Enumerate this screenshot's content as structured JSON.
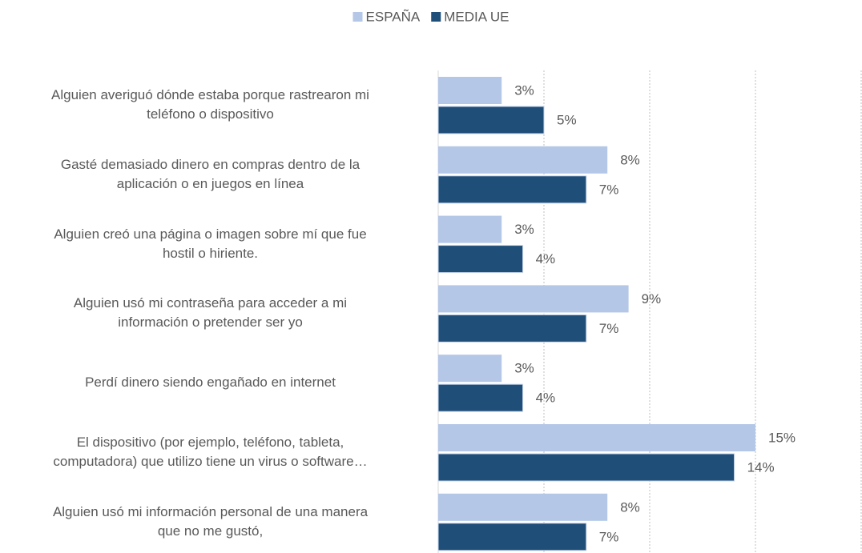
{
  "chart_data": {
    "type": "barh",
    "categories": [
      "Alguien averiguó dónde estaba porque rastrearon mi\nteléfono o dispositivo",
      "Gasté demasiado dinero en compras dentro de la\naplicación o en juegos en línea",
      "Alguien creó una página o imagen sobre mí que fue\nhostil o hiriente.",
      "Alguien usó mi contraseña para acceder a mi\ninformación o pretender ser yo",
      "Perdí dinero siendo engañado en internet",
      "El dispositivo (por ejemplo, teléfono, tableta,\ncomputadora) que utilizo tiene un virus o software…",
      "Alguien usó mi información personal de una manera\nque no me gustó,"
    ],
    "series": [
      {
        "name": "ESPAÑA",
        "color": "#b4c7e7",
        "values": [
          3,
          8,
          3,
          9,
          3,
          15,
          8
        ],
        "value_labels": [
          "3%",
          "8%",
          "3%",
          "9%",
          "3%",
          "15%",
          "8%"
        ]
      },
      {
        "name": "MEDIA UE",
        "color": "#1f4e79",
        "values": [
          5,
          7,
          4,
          7,
          4,
          14,
          7
        ],
        "value_labels": [
          "5%",
          "7%",
          "4%",
          "7%",
          "4%",
          "14%",
          "7%"
        ]
      }
    ],
    "xlim": [
      0,
      20
    ],
    "xticks": [
      0,
      5,
      10,
      15,
      20
    ],
    "grid": true,
    "legend": "top"
  }
}
